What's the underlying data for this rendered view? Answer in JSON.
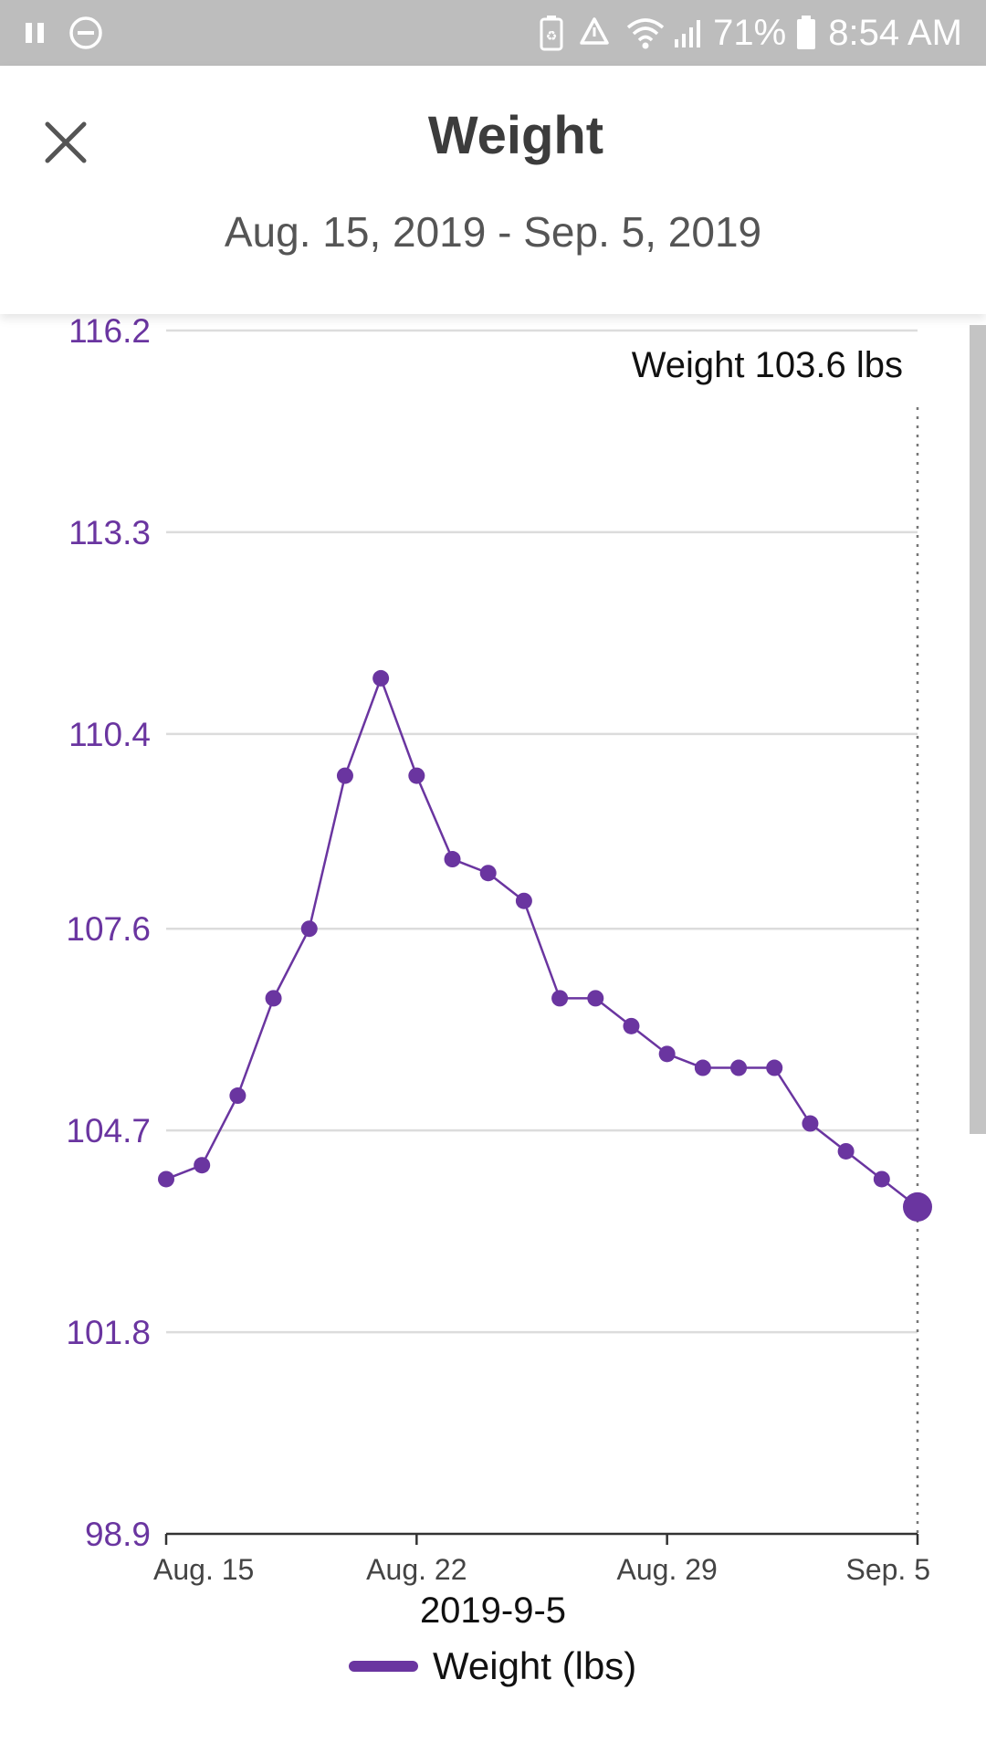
{
  "status_bar": {
    "battery_percent": "71%",
    "time": "8:54 AM",
    "icons": [
      "pause-icon",
      "do-not-disturb-icon",
      "battery-saver-icon",
      "recycle-icon",
      "wifi-icon",
      "signal-icon",
      "battery-icon"
    ]
  },
  "header": {
    "title": "Weight",
    "date_range": "Aug. 15, 2019 - Sep. 5, 2019",
    "close_icon": "close-icon"
  },
  "colors": {
    "series": "#6a35a0",
    "axis_label": "#6a35a0",
    "grid": "#dcdcdc",
    "status_bar": "#bdbdbd"
  },
  "chart_data": {
    "type": "line",
    "x": [
      "Aug. 15",
      "Aug. 16",
      "Aug. 17",
      "Aug. 18",
      "Aug. 19",
      "Aug. 20",
      "Aug. 21",
      "Aug. 22",
      "Aug. 23",
      "Aug. 24",
      "Aug. 25",
      "Aug. 26",
      "Aug. 27",
      "Aug. 28",
      "Aug. 29",
      "Aug. 30",
      "Aug. 31",
      "Sep. 1",
      "Sep. 2",
      "Sep. 3",
      "Sep. 4",
      "Sep. 5"
    ],
    "series": [
      {
        "name": "Weight (lbs)",
        "values": [
          104.0,
          104.2,
          105.2,
          106.6,
          107.6,
          109.8,
          111.2,
          109.8,
          108.6,
          108.4,
          108.0,
          106.6,
          106.6,
          106.2,
          105.8,
          105.6,
          105.6,
          105.6,
          104.8,
          104.4,
          104.0,
          103.6
        ]
      }
    ],
    "ylim": [
      98.9,
      116.2
    ],
    "y_ticks": [
      "116.2",
      "113.3",
      "110.4",
      "107.6",
      "104.7",
      "101.8",
      "98.9"
    ],
    "x_ticks": [
      {
        "label": "Aug. 15",
        "index": 0
      },
      {
        "label": "Aug. 22",
        "index": 7
      },
      {
        "label": "Aug. 29",
        "index": 14
      },
      {
        "label": "Sep. 5",
        "index": 21
      }
    ],
    "selected_index": 21,
    "tooltip": "Weight 103.6 lbs",
    "xlabel": "2019-9-5",
    "legend": {
      "label": "Weight (lbs)",
      "placement": "bottom-center"
    },
    "grid": true
  }
}
